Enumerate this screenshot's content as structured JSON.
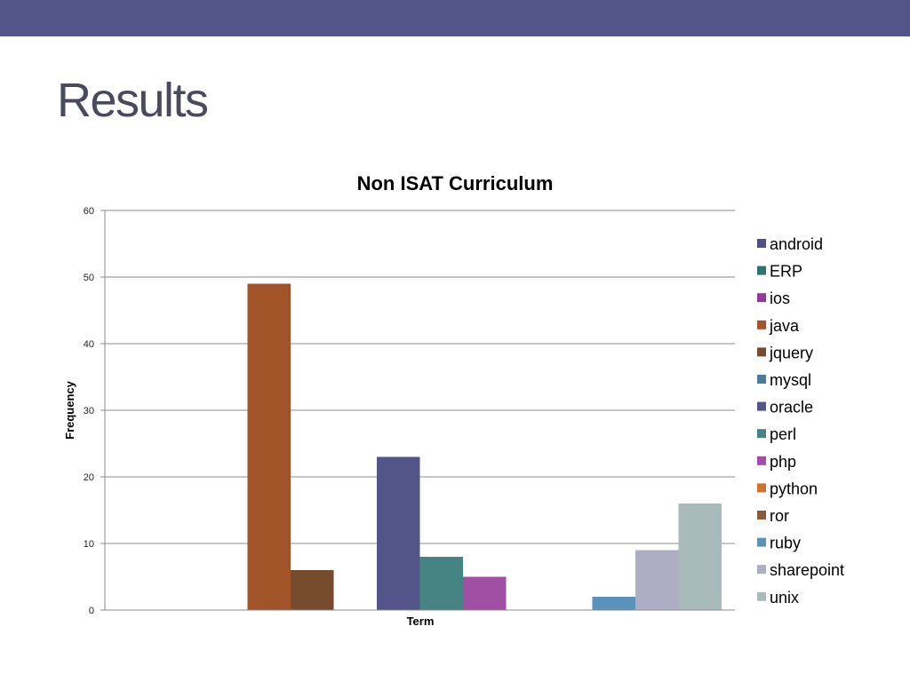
{
  "slide": {
    "title": "Results",
    "band_color": "#535589"
  },
  "chart_data": {
    "type": "bar",
    "title": "Non ISAT Curriculum",
    "xlabel": "Term",
    "ylabel": "Frequency",
    "ylim": [
      0,
      60
    ],
    "yticks": [
      0,
      10,
      20,
      30,
      40,
      50,
      60
    ],
    "grid": true,
    "legend_position": "right",
    "series": [
      {
        "name": "android",
        "value": 0,
        "color": "#4f4f87"
      },
      {
        "name": "ERP",
        "value": 0,
        "color": "#2f7370"
      },
      {
        "name": "ios",
        "value": 0,
        "color": "#8e3c96"
      },
      {
        "name": "java",
        "value": 49,
        "color": "#a05427"
      },
      {
        "name": "jquery",
        "value": 6,
        "color": "#774b2e"
      },
      {
        "name": "mysql",
        "value": 0,
        "color": "#4a7a9c"
      },
      {
        "name": "oracle",
        "value": 23,
        "color": "#535589"
      },
      {
        "name": "perl",
        "value": 8,
        "color": "#468383"
      },
      {
        "name": "php",
        "value": 5,
        "color": "#a14ea5"
      },
      {
        "name": "python",
        "value": 0,
        "color": "#d0712f"
      },
      {
        "name": "ror",
        "value": 0,
        "color": "#8a5a3a"
      },
      {
        "name": "ruby",
        "value": 2,
        "color": "#5993bb"
      },
      {
        "name": "sharepoint",
        "value": 9,
        "color": "#adadc3"
      },
      {
        "name": "unix",
        "value": 16,
        "color": "#a9baba"
      }
    ]
  }
}
